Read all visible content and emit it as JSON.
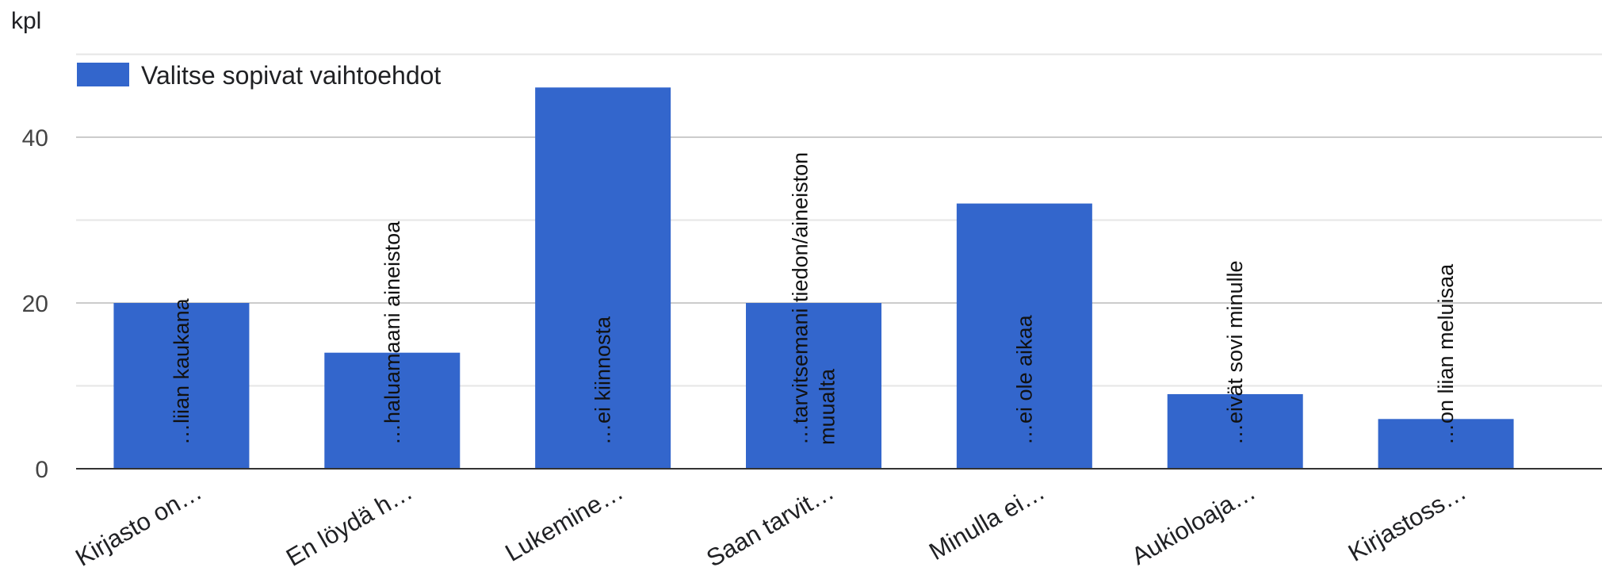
{
  "chart_data": {
    "type": "bar",
    "unit_label": "kpl",
    "categories": [
      "Kirjasto on…",
      "En löydä h…",
      "Lukemine…",
      "Saan tarvit…",
      "Minulla ei…",
      "Aukioloaja…",
      "Kirjastoss…"
    ],
    "series": [
      {
        "name": "Valitse sopivat vaihtoehdot",
        "values": [
          20,
          14,
          46,
          20,
          32,
          9,
          6
        ],
        "color": "#3366cc"
      }
    ],
    "data_labels": [
      [
        "…liian kaukana"
      ],
      [
        "…haluamaani aineistoa"
      ],
      [
        "…ei kiinnosta"
      ],
      [
        "…tarvitsemani tiedon/aineiston",
        "muualta"
      ],
      [
        "…ei ole aikaa"
      ],
      [
        "…eivät sovi minulle"
      ],
      [
        "…on liian meluisaa"
      ]
    ],
    "yticks": [
      "0",
      "20",
      "40"
    ],
    "ylim": [
      0,
      50
    ],
    "grid": true,
    "legend": "top-left"
  }
}
